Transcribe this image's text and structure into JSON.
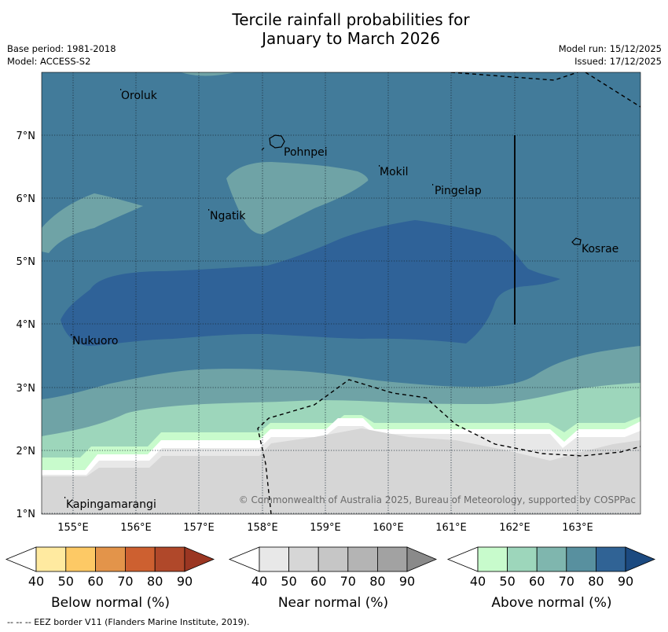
{
  "title": {
    "line1": "Tercile rainfall probabilities for",
    "line2": "January to March 2026"
  },
  "meta": {
    "base_period": "Base period: 1981-2018",
    "model": "Model: ACCESS-S2",
    "model_run": "Model run: 15/12/2025",
    "issued": "Issued: 17/12/2025"
  },
  "map": {
    "lat_labels": [
      "7°N",
      "6°N",
      "5°N",
      "4°N",
      "3°N",
      "2°N",
      "1°N"
    ],
    "lon_labels": [
      "155°E",
      "156°E",
      "157°E",
      "158°E",
      "159°E",
      "160°E",
      "161°E",
      "162°E",
      "163°E"
    ],
    "places": [
      "Oroluk",
      "Pohnpei",
      "Mokil",
      "Pingelap",
      "Ngatik",
      "Kosrae",
      "Nukuoro",
      "Kapingamarangi"
    ],
    "copyright": "© Commonwealth of Australia 2025, Bureau of Meteorology, supported by COSPPac"
  },
  "legends": [
    {
      "title": "Below normal (%)",
      "ticks": [
        "40",
        "50",
        "60",
        "70",
        "80",
        "90"
      ],
      "colors": [
        "#ffffff",
        "#ffeaa0",
        "#fdc965",
        "#e3944a",
        "#cd6030",
        "#b0482a",
        "#9b3622"
      ]
    },
    {
      "title": "Near normal (%)",
      "ticks": [
        "40",
        "50",
        "60",
        "70",
        "80",
        "90"
      ],
      "colors": [
        "#ffffff",
        "#e8e8e8",
        "#d6d6d6",
        "#c6c6c6",
        "#b4b4b4",
        "#a2a2a2",
        "#8a8a8a"
      ]
    },
    {
      "title": "Above normal (%)",
      "ticks": [
        "40",
        "50",
        "60",
        "70",
        "80",
        "90"
      ],
      "colors": [
        "#ffffff",
        "#c8fbcc",
        "#9dd6bb",
        "#7fb6ae",
        "#58909f",
        "#306395",
        "#1c4a80"
      ]
    }
  ],
  "footer": "--  --  -- EEZ border V11 (Flanders Marine Institute, 2019)."
}
